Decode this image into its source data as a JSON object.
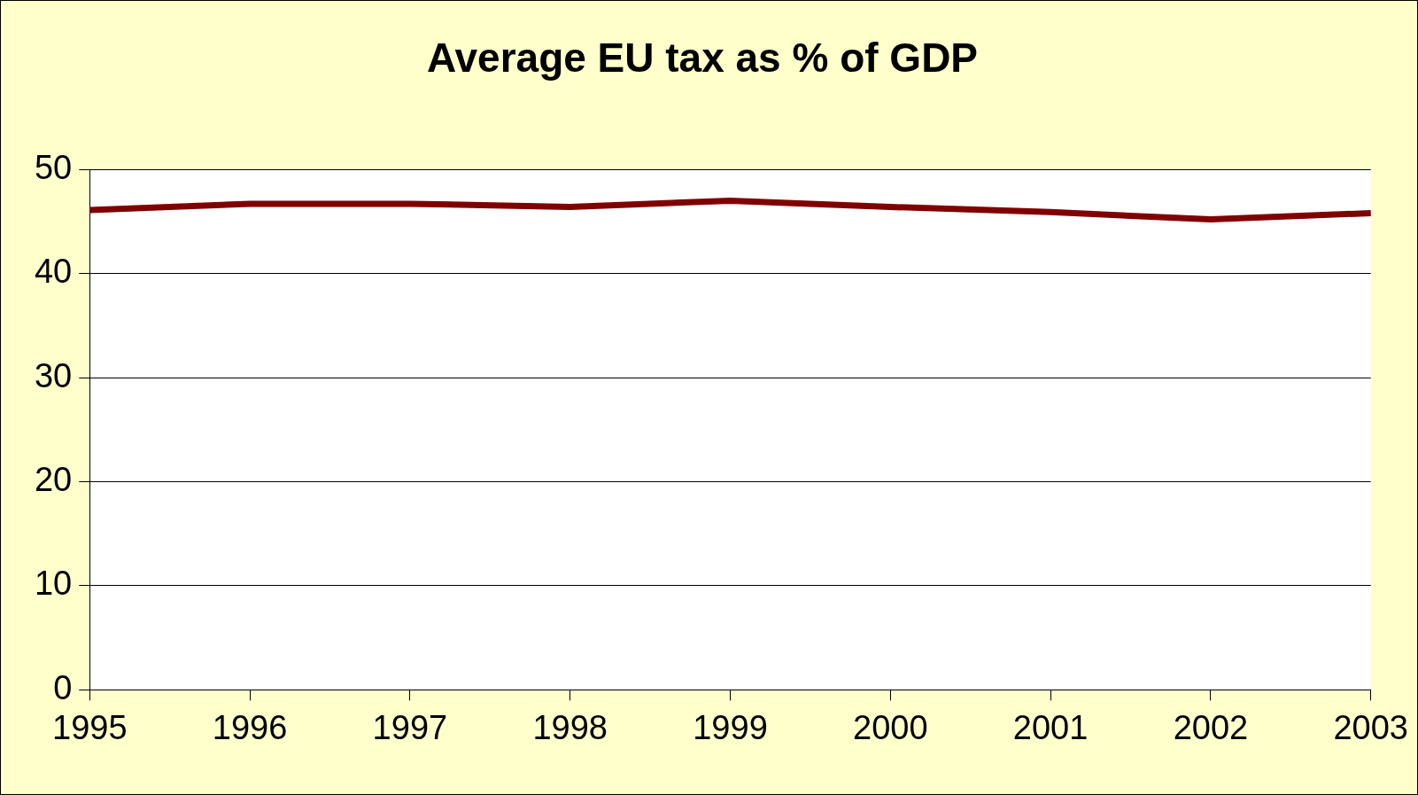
{
  "chart_data": {
    "type": "line",
    "title": "Average EU tax as % of GDP",
    "categories": [
      "1995",
      "1996",
      "1997",
      "1998",
      "1999",
      "2000",
      "2001",
      "2002",
      "2003"
    ],
    "series": [
      {
        "color": "#800000",
        "values": [
          46.1,
          46.7,
          46.7,
          46.4,
          47.0,
          46.4,
          45.9,
          45.2,
          45.8
        ]
      }
    ],
    "ylim": [
      0,
      50
    ],
    "yticks": [
      0,
      10,
      20,
      30,
      40,
      50
    ],
    "grid": "y",
    "legend": false,
    "marker": "none",
    "line_style": "solid"
  }
}
